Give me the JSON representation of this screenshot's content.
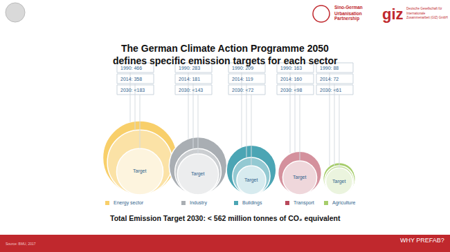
{
  "chart_data": {
    "type": "nested_circles",
    "title_lines": [
      "The German Climate Action Programme 2050",
      "defines specific emission targets for each sector"
    ],
    "categories": [
      "Energy sector",
      "Industry",
      "Buildings",
      "Transport",
      "Agriculture"
    ],
    "colors": [
      "#f8cf6a",
      "#a9aeb3",
      "#4ba5b4",
      "#b8485b",
      "#a6cd6b"
    ],
    "series": [
      {
        "name": "1990",
        "values": [
          466,
          283,
          209,
          163,
          88
        ],
        "value_labels": [
          "1990: 466",
          "1990: 283",
          "1990: 209",
          "1990: 163",
          "1990: 88"
        ]
      },
      {
        "name": "2014",
        "values": [
          358,
          181,
          119,
          160,
          72
        ],
        "value_labels": [
          "2014: 358",
          "2014: 181",
          "2014: 119",
          "2014: 160",
          "2014: 72"
        ]
      },
      {
        "name": "2030",
        "values": [
          183,
          143,
          72,
          98,
          61
        ],
        "value_labels": [
          "2030: <183",
          "2030: <143",
          "2030: <72",
          "2030: <98",
          "2030: <61"
        ]
      }
    ],
    "inner_label": "Target",
    "data_labels": true,
    "legend": "bottom",
    "total_note": "Total Emission Target 2030: < 562 million tonnes of CO₂ equivalent",
    "source": "Source: BMU, 2017",
    "footer": "WHY PREFAB?",
    "partner_logo_lines": [
      "Sino-German",
      "Urbanisation",
      "Partnership"
    ],
    "giz_logo": "giz",
    "giz_logo_lines": [
      "Deutsche Gesellschaft für",
      "Internationale",
      "Zusammenarbeit (GIZ) GmbH"
    ]
  }
}
